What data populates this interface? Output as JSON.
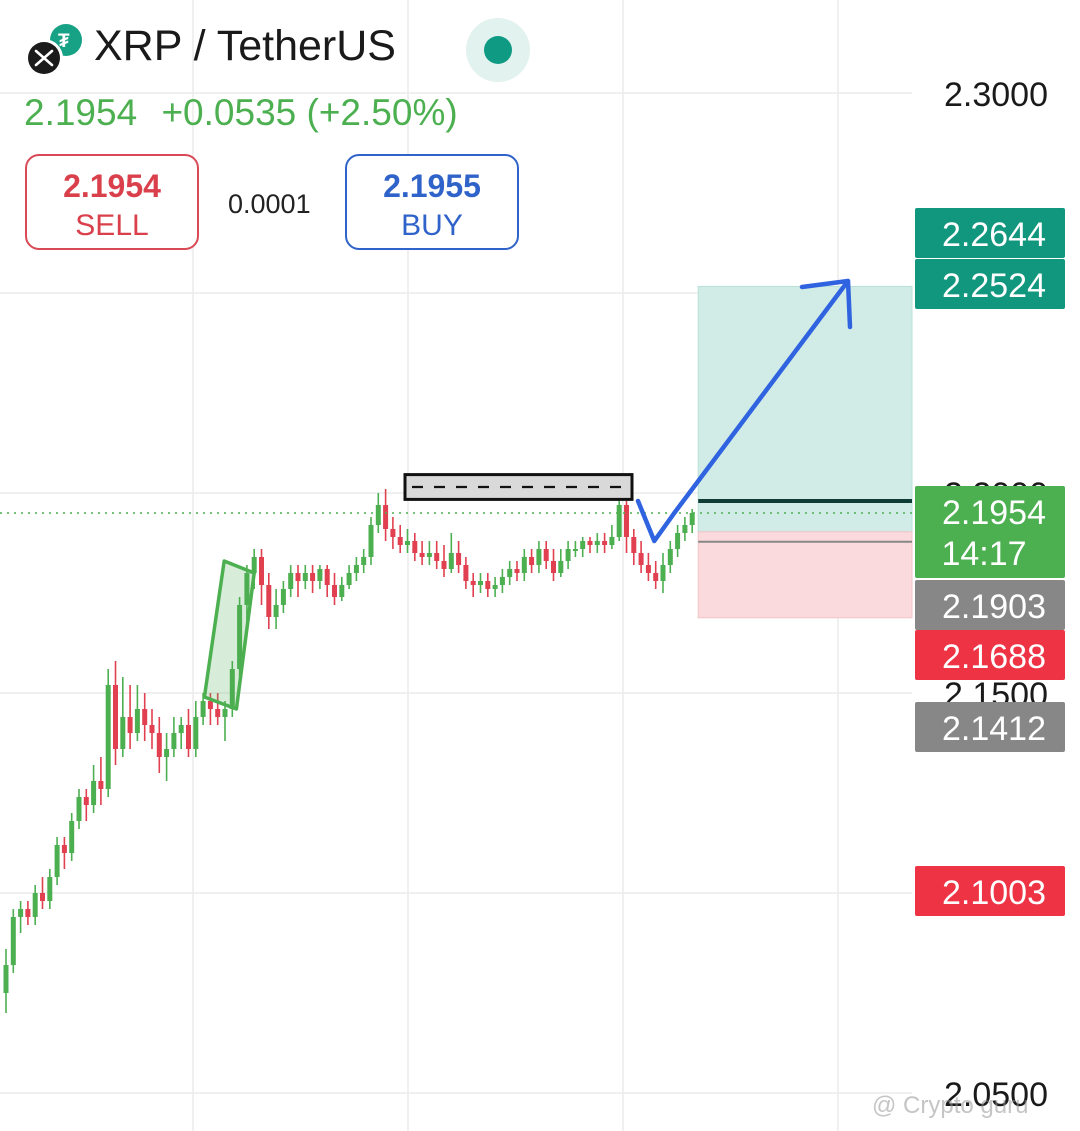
{
  "header": {
    "title": "XRP / TetherUS",
    "last_price": "2.1954",
    "change": "+0.0535 (+2.50%)",
    "logo_icons": [
      "xrp-logo-icon",
      "tether-logo-icon"
    ],
    "live_indicator_color": "#0f9a83"
  },
  "trade": {
    "sell_price": "2.1954",
    "sell_label": "SELL",
    "spread": "0.0001",
    "buy_price": "2.1955",
    "buy_label": "BUY"
  },
  "price_axis": {
    "ticks": [
      "2.3000",
      "2.2000",
      "2.1500",
      "2.0500"
    ],
    "markers": [
      {
        "id": "tp-high",
        "text": "2.2644",
        "price": 2.2644,
        "color": "#12977f"
      },
      {
        "id": "tp",
        "text": "2.2524",
        "price": 2.2524,
        "color": "#12977f"
      },
      {
        "id": "current",
        "text": "2.1954",
        "sub": "14:17",
        "price": 2.1954,
        "color": "#4caf50"
      },
      {
        "id": "entry",
        "text": "2.1903",
        "price": 2.1903,
        "color": "#878787"
      },
      {
        "id": "stop",
        "text": "2.1688",
        "price": 2.1688,
        "color": "#ee3345"
      },
      {
        "id": "low",
        "text": "2.1412",
        "price": 2.1412,
        "color": "#878787"
      },
      {
        "id": "low2",
        "text": "2.1003",
        "price": 2.1003,
        "color": "#ee3345"
      }
    ]
  },
  "chart_data": {
    "type": "candlestick",
    "symbol": "XRP / TetherUS",
    "ylim": [
      2.0325,
      2.3125
    ],
    "grid": true,
    "colors": {
      "up": "#4caf50",
      "down": "#e0404f"
    },
    "candles": [
      [
        2.075,
        2.082,
        2.07,
        2.086
      ],
      [
        2.082,
        2.094,
        2.08,
        2.096
      ],
      [
        2.094,
        2.096,
        2.09,
        2.098
      ],
      [
        2.096,
        2.094,
        2.092,
        2.098
      ],
      [
        2.094,
        2.1,
        2.092,
        2.102
      ],
      [
        2.1,
        2.098,
        2.096,
        2.104
      ],
      [
        2.098,
        2.104,
        2.096,
        2.106
      ],
      [
        2.104,
        2.112,
        2.102,
        2.114
      ],
      [
        2.112,
        2.11,
        2.106,
        2.114
      ],
      [
        2.11,
        2.118,
        2.108,
        2.12
      ],
      [
        2.118,
        2.124,
        2.116,
        2.126
      ],
      [
        2.124,
        2.122,
        2.118,
        2.126
      ],
      [
        2.122,
        2.128,
        2.12,
        2.132
      ],
      [
        2.128,
        2.126,
        2.122,
        2.134
      ],
      [
        2.126,
        2.152,
        2.124,
        2.156
      ],
      [
        2.152,
        2.136,
        2.132,
        2.158
      ],
      [
        2.136,
        2.144,
        2.134,
        2.154
      ],
      [
        2.144,
        2.14,
        2.136,
        2.152
      ],
      [
        2.14,
        2.146,
        2.138,
        2.152
      ],
      [
        2.146,
        2.142,
        2.138,
        2.15
      ],
      [
        2.142,
        2.14,
        2.136,
        2.146
      ],
      [
        2.14,
        2.134,
        2.13,
        2.144
      ],
      [
        2.134,
        2.136,
        2.128,
        2.14
      ],
      [
        2.136,
        2.14,
        2.134,
        2.144
      ],
      [
        2.14,
        2.142,
        2.136,
        2.144
      ],
      [
        2.142,
        2.136,
        2.134,
        2.146
      ],
      [
        2.136,
        2.144,
        2.134,
        2.148
      ],
      [
        2.144,
        2.148,
        2.142,
        2.15
      ],
      [
        2.148,
        2.146,
        2.142,
        2.15
      ],
      [
        2.146,
        2.144,
        2.142,
        2.15
      ],
      [
        2.144,
        2.146,
        2.138,
        2.148
      ],
      [
        2.146,
        2.156,
        2.144,
        2.158
      ],
      [
        2.156,
        2.172,
        2.154,
        2.174
      ],
      [
        2.172,
        2.18,
        2.168,
        2.182
      ],
      [
        2.18,
        2.184,
        2.176,
        2.186
      ],
      [
        2.184,
        2.177,
        2.172,
        2.186
      ],
      [
        2.177,
        2.169,
        2.166,
        2.18
      ],
      [
        2.169,
        2.172,
        2.166,
        2.176
      ],
      [
        2.172,
        2.176,
        2.17,
        2.178
      ],
      [
        2.176,
        2.18,
        2.174,
        2.182
      ],
      [
        2.18,
        2.178,
        2.174,
        2.182
      ],
      [
        2.178,
        2.18,
        2.176,
        2.182
      ],
      [
        2.18,
        2.178,
        2.175,
        2.182
      ],
      [
        2.178,
        2.181,
        2.176,
        2.182
      ],
      [
        2.181,
        2.177,
        2.174,
        2.182
      ],
      [
        2.177,
        2.174,
        2.172,
        2.18
      ],
      [
        2.174,
        2.177,
        2.173,
        2.179
      ],
      [
        2.177,
        2.18,
        2.176,
        2.182
      ],
      [
        2.18,
        2.182,
        2.178,
        2.184
      ],
      [
        2.182,
        2.184,
        2.18,
        2.186
      ],
      [
        2.184,
        2.192,
        2.182,
        2.194
      ],
      [
        2.192,
        2.197,
        2.19,
        2.2
      ],
      [
        2.197,
        2.191,
        2.188,
        2.201
      ],
      [
        2.191,
        2.189,
        2.186,
        2.194
      ],
      [
        2.189,
        2.187,
        2.185,
        2.192
      ],
      [
        2.187,
        2.188,
        2.185,
        2.191
      ],
      [
        2.188,
        2.185,
        2.183,
        2.19
      ],
      [
        2.185,
        2.184,
        2.182,
        2.188
      ],
      [
        2.184,
        2.185,
        2.182,
        2.188
      ],
      [
        2.185,
        2.183,
        2.181,
        2.188
      ],
      [
        2.183,
        2.181,
        2.179,
        2.187
      ],
      [
        2.181,
        2.185,
        2.18,
        2.19
      ],
      [
        2.185,
        2.182,
        2.18,
        2.188
      ],
      [
        2.182,
        2.178,
        2.176,
        2.184
      ],
      [
        2.178,
        2.177,
        2.174,
        2.18
      ],
      [
        2.177,
        2.178,
        2.175,
        2.18
      ],
      [
        2.178,
        2.176,
        2.174,
        2.18
      ],
      [
        2.176,
        2.177,
        2.174,
        2.179
      ],
      [
        2.177,
        2.179,
        2.175,
        2.181
      ],
      [
        2.179,
        2.181,
        2.177,
        2.183
      ],
      [
        2.181,
        2.18,
        2.178,
        2.183
      ],
      [
        2.18,
        2.184,
        2.178,
        2.186
      ],
      [
        2.184,
        2.182,
        2.18,
        2.186
      ],
      [
        2.182,
        2.186,
        2.18,
        2.188
      ],
      [
        2.186,
        2.183,
        2.181,
        2.188
      ],
      [
        2.183,
        2.18,
        2.178,
        2.186
      ],
      [
        2.18,
        2.183,
        2.179,
        2.186
      ],
      [
        2.183,
        2.186,
        2.181,
        2.188
      ],
      [
        2.186,
        2.186,
        2.184,
        2.188
      ],
      [
        2.186,
        2.188,
        2.184,
        2.189
      ],
      [
        2.188,
        2.187,
        2.185,
        2.189
      ],
      [
        2.187,
        2.188,
        2.185,
        2.19
      ],
      [
        2.188,
        2.187,
        2.185,
        2.19
      ],
      [
        2.187,
        2.189,
        2.186,
        2.192
      ],
      [
        2.189,
        2.197,
        2.188,
        2.198
      ],
      [
        2.197,
        2.189,
        2.185,
        2.198
      ],
      [
        2.189,
        2.185,
        2.182,
        2.191
      ],
      [
        2.185,
        2.182,
        2.18,
        2.188
      ],
      [
        2.182,
        2.18,
        2.178,
        2.185
      ],
      [
        2.18,
        2.178,
        2.176,
        2.183
      ],
      [
        2.178,
        2.182,
        2.175,
        2.185
      ],
      [
        2.182,
        2.186,
        2.18,
        2.188
      ],
      [
        2.186,
        2.19,
        2.184,
        2.192
      ],
      [
        2.19,
        2.192,
        2.188,
        2.194
      ],
      [
        2.192,
        2.195,
        2.19,
        2.196
      ]
    ],
    "annotations": [
      {
        "type": "resistance-box",
        "price_top": 2.2046,
        "price_bottom": 2.1984
      },
      {
        "type": "impulse-flag",
        "from_candle": 28,
        "to_candle": 34
      },
      {
        "type": "projection-arrow",
        "from_price": 2.195,
        "to_price": 2.253,
        "direction": "up"
      },
      {
        "type": "position",
        "entry": 2.1903,
        "target": 2.2524,
        "stop": 2.1688
      }
    ]
  },
  "watermark": "@ Crypto guru"
}
